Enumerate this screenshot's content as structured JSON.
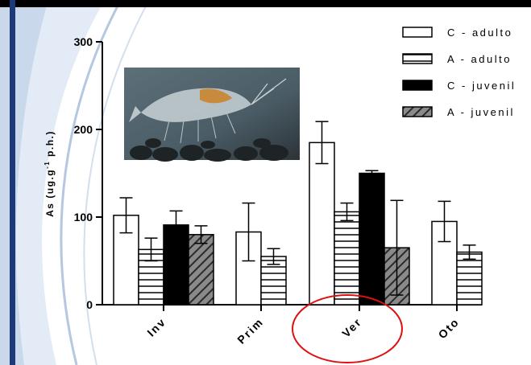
{
  "chart_data": {
    "type": "bar",
    "ylabel": "As (ug.g",
    "ylabel_sup": "-1",
    "ylabel_tail": " p.h.)",
    "ylim": [
      0,
      300
    ],
    "yticks": [
      "0",
      "100",
      "200",
      "300"
    ],
    "categories": [
      "Inv",
      "Prim",
      "Ver",
      "Oto"
    ],
    "series": [
      {
        "name": "C - adulto",
        "fill": "#ffffff",
        "pattern": "none",
        "values": [
          102,
          83,
          185,
          95
        ],
        "errors": [
          20,
          33,
          24,
          23
        ]
      },
      {
        "name": "A - adulto",
        "fill": "#ffffff",
        "pattern": "horizontal-lines",
        "values": [
          63,
          55,
          106,
          60
        ],
        "errors": [
          13,
          9,
          10,
          8
        ]
      },
      {
        "name": "C - juvenil",
        "fill": "#000000",
        "pattern": "none",
        "values": [
          91,
          null,
          150,
          null
        ],
        "errors": [
          16,
          null,
          3,
          null
        ]
      },
      {
        "name": "A - juvenil",
        "fill": "#7f7f7f",
        "pattern": "diagonal-hatch",
        "values": [
          80,
          null,
          65,
          null
        ],
        "errors": [
          10,
          null,
          54,
          null
        ]
      }
    ],
    "legend_position": "top-right",
    "grid": false,
    "highlight": {
      "category": "Ver",
      "shape": "red-ellipse",
      "color": "#dd1111"
    },
    "inset": {
      "content": "shrimp-photo"
    }
  },
  "colors": {
    "background": "#ffffff",
    "arc_light": "#dde8f4",
    "arc_dark": "#1d3a78",
    "axis": "#000000",
    "highlight": "#dd1111"
  }
}
